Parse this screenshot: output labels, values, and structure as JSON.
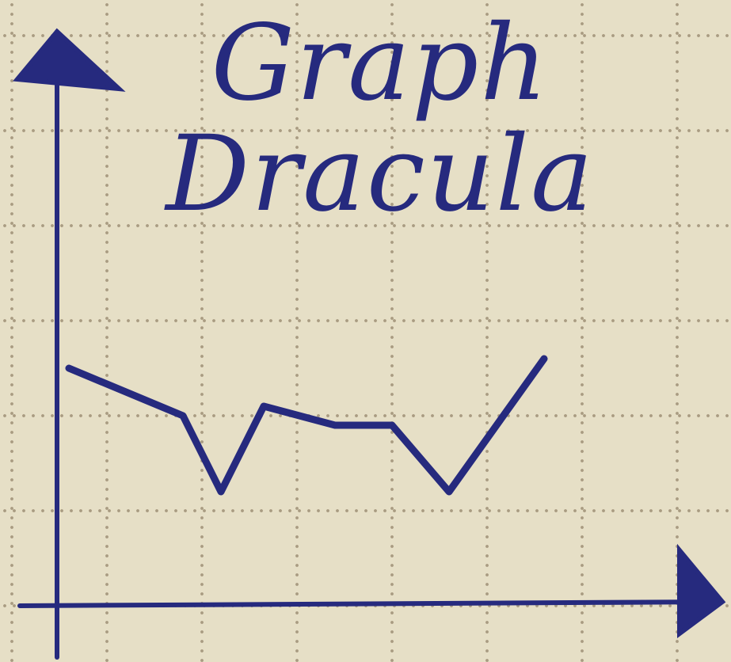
{
  "chart_data": {
    "type": "line",
    "title": "Graph Dracula",
    "x": [
      0.1,
      1.3,
      1.7,
      2.15,
      2.9,
      3.5,
      4.1,
      5.1
    ],
    "values": [
      2.5,
      2.0,
      1.2,
      2.1,
      1.9,
      1.9,
      1.2,
      2.6
    ],
    "color": "#262a7e",
    "xlim": [
      0,
      7
    ],
    "ylim": [
      0,
      6
    ]
  }
}
